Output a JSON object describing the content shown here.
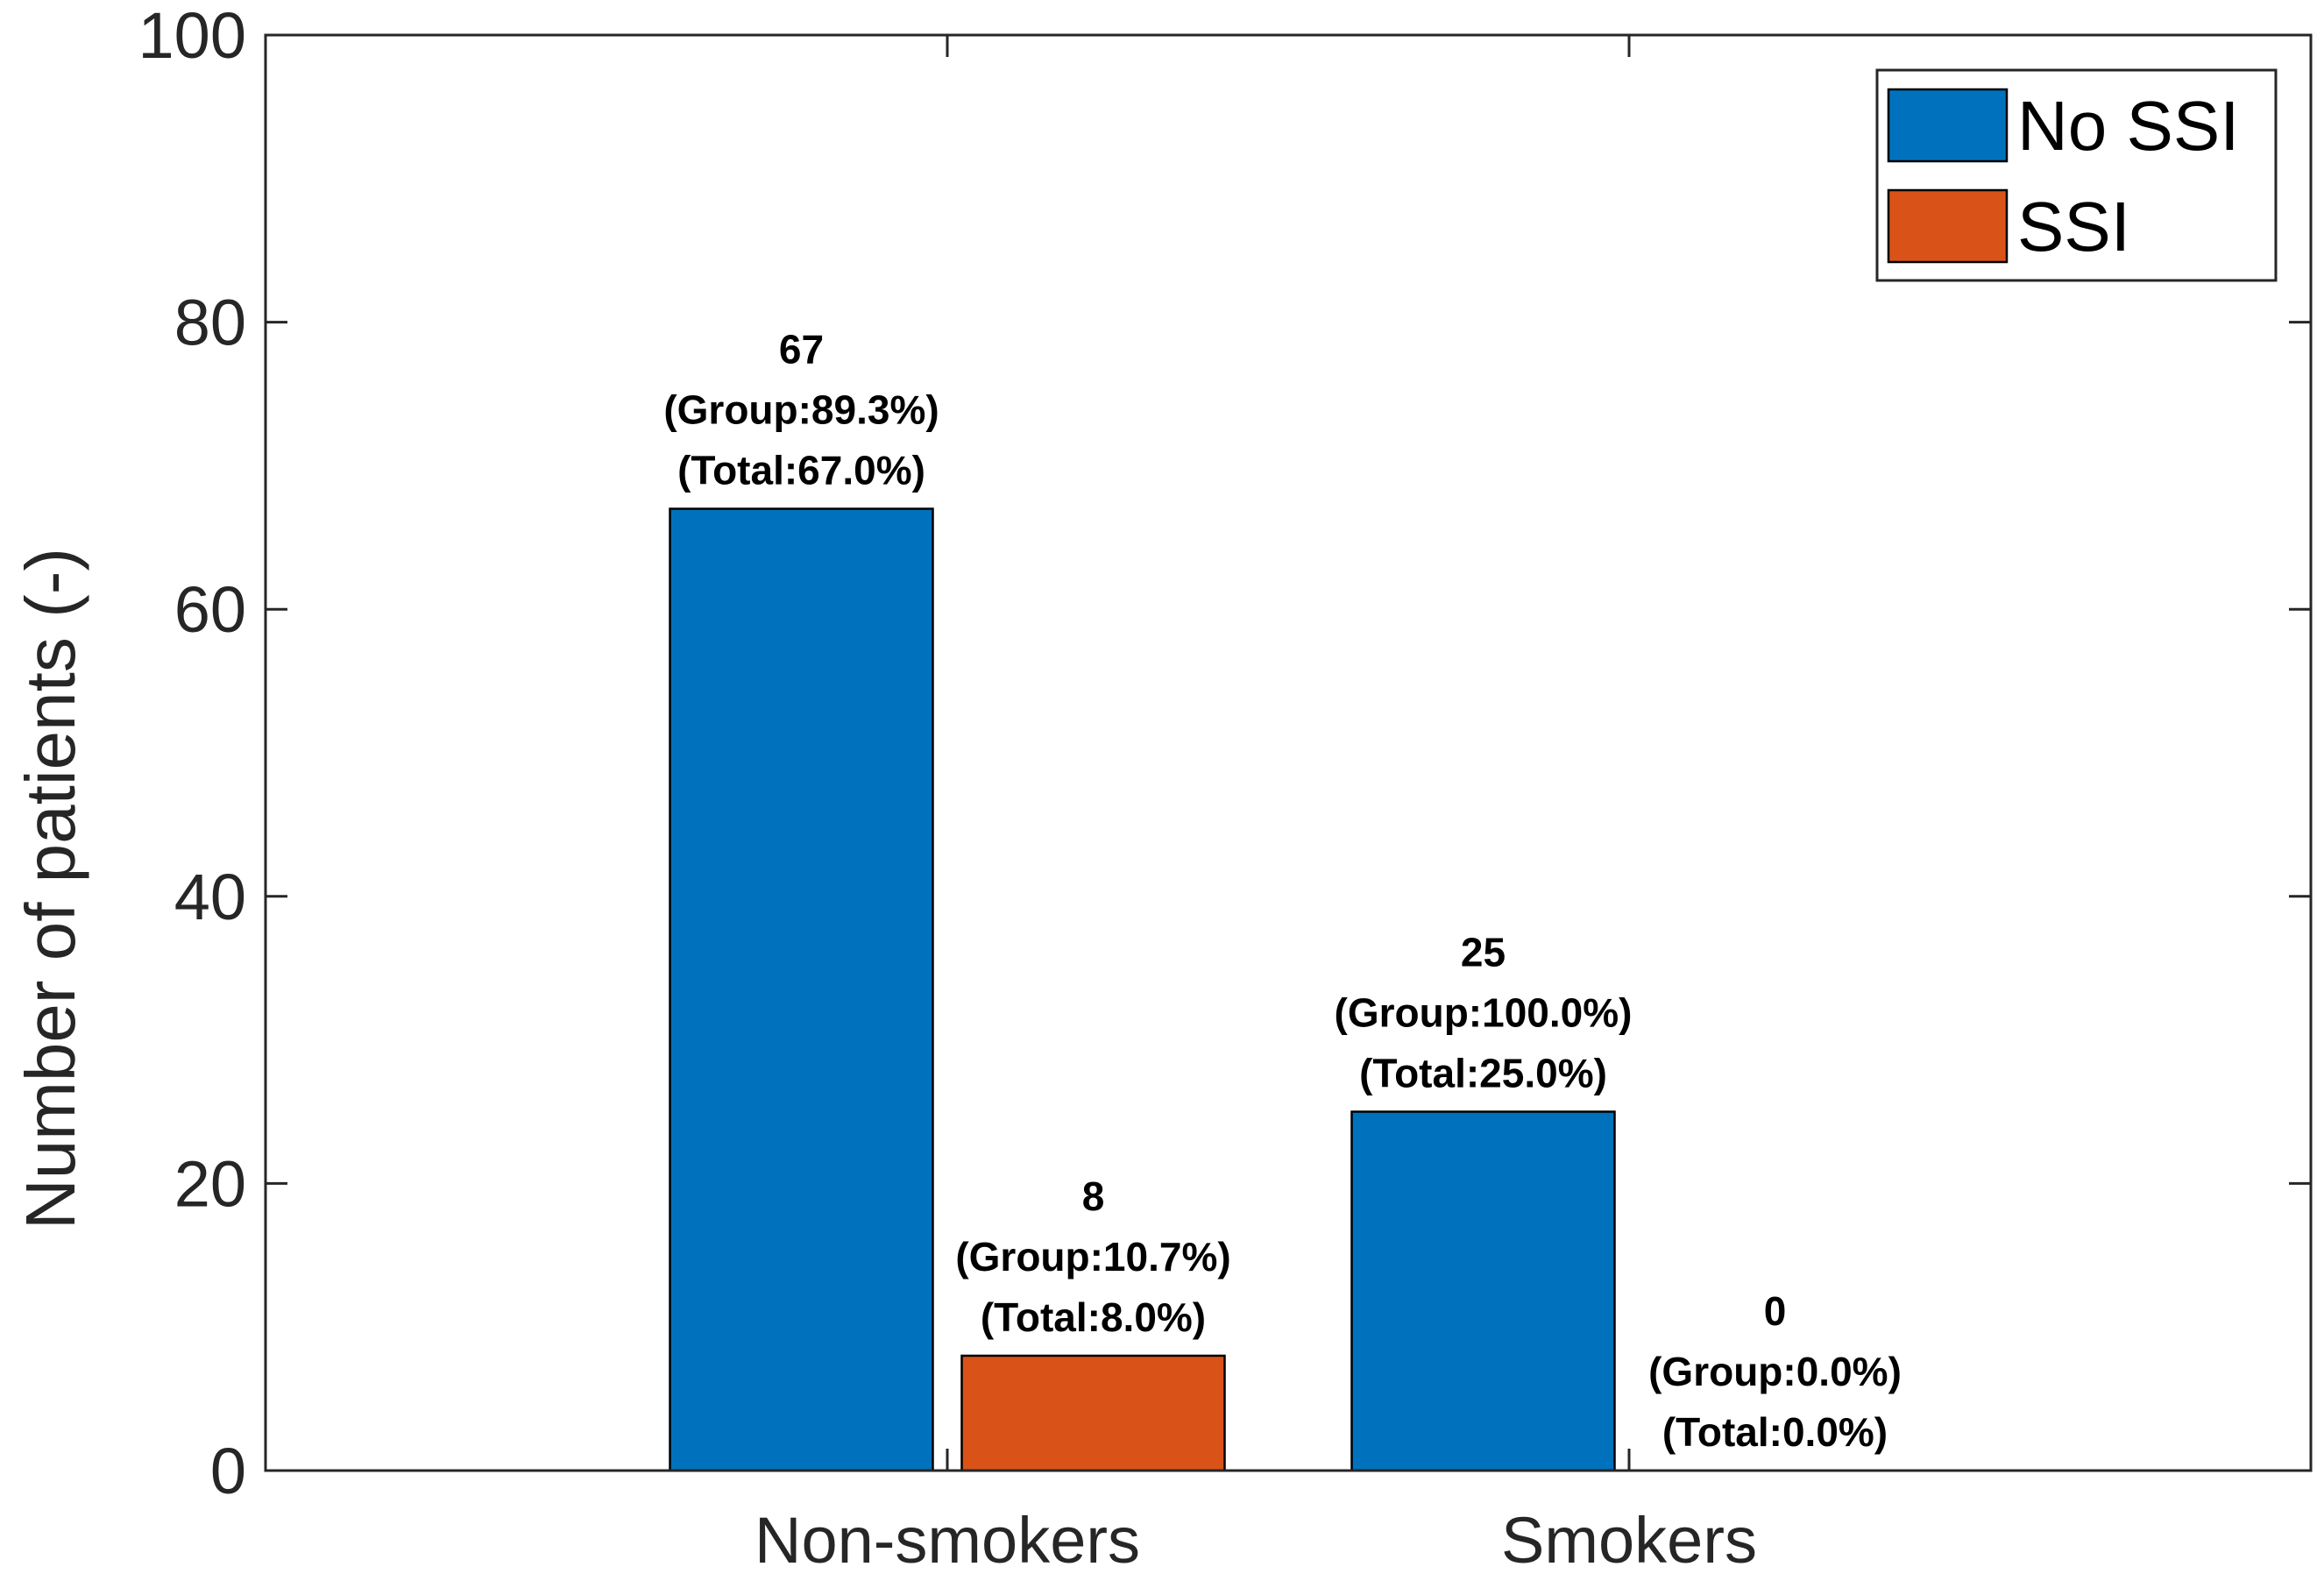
{
  "chart_data": {
    "type": "bar",
    "title": "",
    "xlabel": "",
    "ylabel": "Number of patients (-)",
    "ylim": [
      0,
      100
    ],
    "yticks": [
      0,
      20,
      40,
      60,
      80,
      100
    ],
    "categories": [
      "Non-smokers",
      "Smokers"
    ],
    "series": [
      {
        "name": "No SSI",
        "color": "#0072BD",
        "values": [
          67,
          25
        ],
        "labels": [
          [
            "67",
            "(Group:89.3%)",
            "(Total:67.0%)"
          ],
          [
            "25",
            "(Group:100.0%)",
            "(Total:25.0%)"
          ]
        ]
      },
      {
        "name": "SSI",
        "color": "#D95319",
        "values": [
          8,
          0
        ],
        "labels": [
          [
            "8",
            "(Group:10.7%)",
            "(Total:8.0%)"
          ],
          [
            "0",
            "(Group:0.0%)",
            "(Total:0.0%)"
          ]
        ]
      }
    ],
    "legend": {
      "position": "top-right",
      "entries": [
        "No SSI",
        "SSI"
      ]
    },
    "grid": false,
    "box": true
  }
}
